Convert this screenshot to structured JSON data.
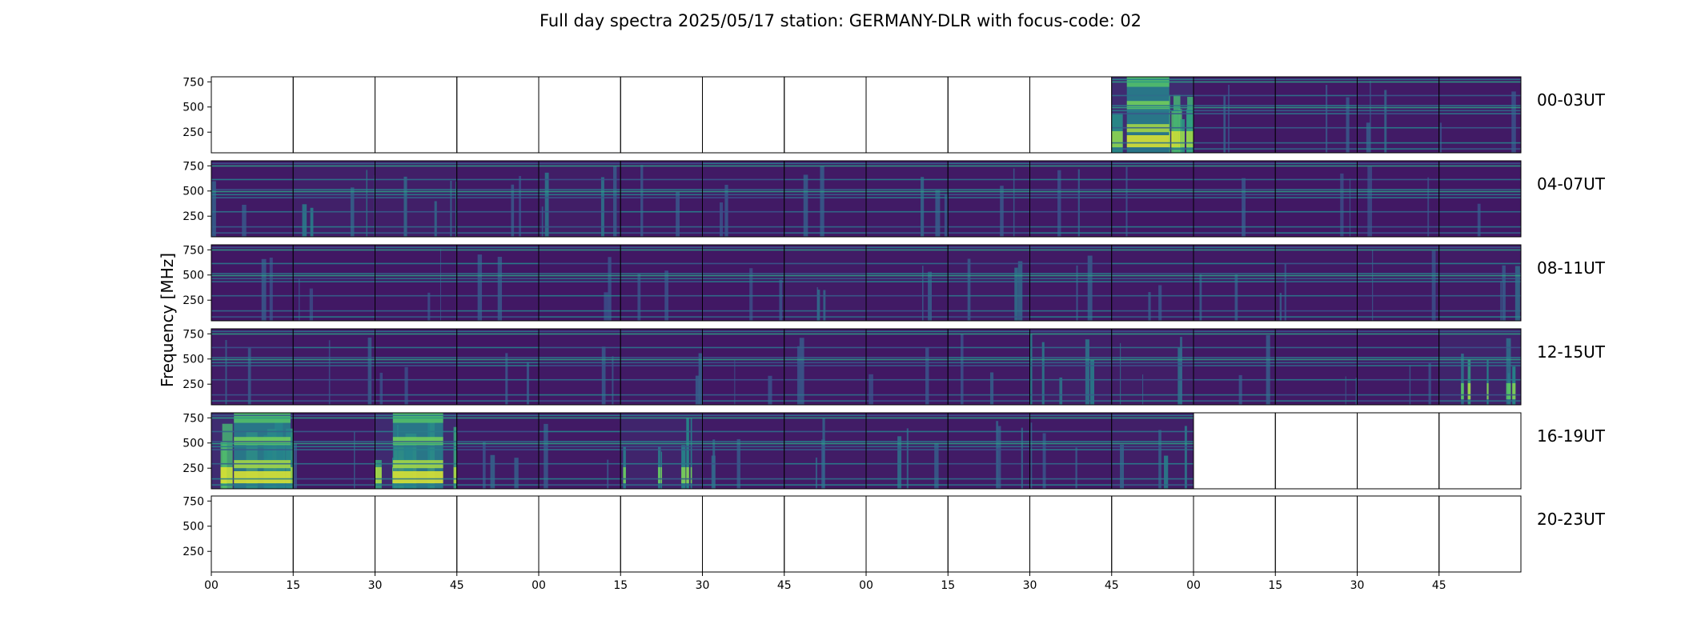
{
  "chart_data": {
    "type": "heatmap",
    "title": "Full day spectra 2025/05/17 station: GERMANY-DLR with focus-code: 02",
    "ylabel": "Frequency [MHz]",
    "xlabel": "",
    "y_ticks": [
      250,
      500,
      750
    ],
    "ylim": [
      45,
      800
    ],
    "x_ticks": [
      "00",
      "15",
      "30",
      "45",
      "00",
      "15",
      "30",
      "45",
      "00",
      "15",
      "30",
      "45",
      "00",
      "15",
      "30",
      "45"
    ],
    "panels_per_row": 16,
    "minutes_per_panel": 15,
    "colormap": [
      "#440154",
      "#3b528b",
      "#21918c",
      "#5ec962",
      "#fde725"
    ],
    "rows": [
      {
        "label": "00-03UT",
        "available": [
          0,
          0,
          0,
          0,
          0,
          0,
          0,
          0,
          0,
          0,
          0,
          1,
          1,
          1,
          1,
          1
        ],
        "activity": [
          0,
          0,
          0,
          0,
          0,
          0,
          0,
          0,
          0,
          0,
          0,
          0.9,
          0.2,
          0.2,
          0.25,
          0.2
        ]
      },
      {
        "label": "04-07UT",
        "available": [
          1,
          1,
          1,
          1,
          1,
          1,
          1,
          1,
          1,
          1,
          1,
          1,
          1,
          1,
          1,
          1
        ],
        "activity": [
          0.2,
          0.45,
          0.4,
          0.2,
          0.35,
          0.2,
          0.2,
          0.2,
          0.25,
          0.2,
          0.2,
          0.15,
          0.15,
          0.15,
          0.15,
          0.15
        ]
      },
      {
        "label": "08-11UT",
        "available": [
          1,
          1,
          1,
          1,
          1,
          1,
          1,
          1,
          1,
          1,
          1,
          1,
          1,
          1,
          1,
          1
        ],
        "activity": [
          0.15,
          0.15,
          0.15,
          0.15,
          0.15,
          0.15,
          0.15,
          0.3,
          0.2,
          0.3,
          0.2,
          0.2,
          0.2,
          0.2,
          0.2,
          0.3
        ]
      },
      {
        "label": "12-15UT",
        "available": [
          1,
          1,
          1,
          1,
          1,
          1,
          1,
          1,
          1,
          1,
          1,
          1,
          1,
          1,
          1,
          1
        ],
        "activity": [
          0.3,
          0.2,
          0.15,
          0.15,
          0.2,
          0.2,
          0.15,
          0.2,
          0.15,
          0.2,
          0.45,
          0.35,
          0.2,
          0.2,
          0.2,
          0.6
        ]
      },
      {
        "label": "16-19UT",
        "available": [
          1,
          1,
          1,
          1,
          1,
          1,
          1,
          1,
          1,
          1,
          1,
          1,
          0,
          0,
          0,
          0
        ],
        "activity": [
          0.9,
          0.2,
          0.85,
          0.25,
          0.2,
          0.6,
          0.25,
          0.3,
          0.3,
          0.25,
          0.25,
          0.4,
          0,
          0,
          0,
          0
        ]
      },
      {
        "label": "20-23UT",
        "available": [
          0,
          0,
          0,
          0,
          0,
          0,
          0,
          0,
          0,
          0,
          0,
          0,
          0,
          0,
          0,
          0
        ],
        "activity": [
          0,
          0,
          0,
          0,
          0,
          0,
          0,
          0,
          0,
          0,
          0,
          0,
          0,
          0,
          0,
          0
        ]
      }
    ]
  }
}
